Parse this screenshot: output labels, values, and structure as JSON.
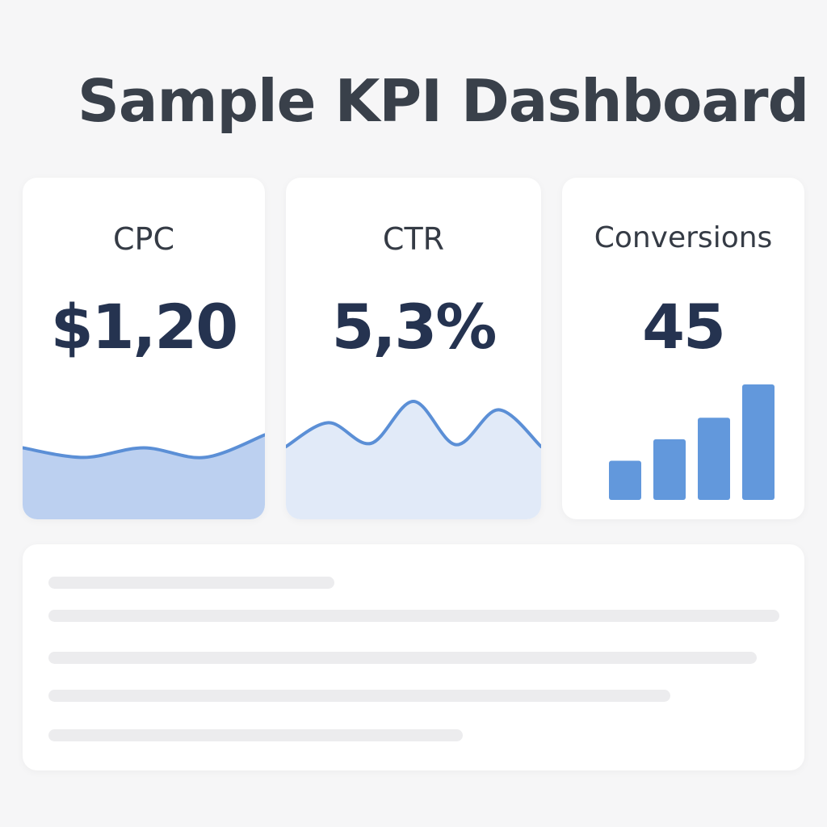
{
  "header": {
    "title": "Sample KPI Dashboard"
  },
  "kpis": [
    {
      "label": "CPC",
      "value": "$1,20",
      "sparkline": {
        "type": "area",
        "values": [
          0.55,
          0.38,
          0.55,
          0.38,
          0.78
        ],
        "line_color": "#5b8fd6",
        "fill_color": "#bcd0f0"
      }
    },
    {
      "label": "CTR",
      "value": "5,3%",
      "sparkline": {
        "type": "area",
        "values": [
          0.25,
          0.62,
          0.3,
          0.95,
          0.28,
          0.82,
          0.25
        ],
        "line_color": "#5b8fd6",
        "fill_color": "#e1eaf8"
      }
    },
    {
      "label": "Conversions",
      "value": "45",
      "bars": {
        "type": "bar",
        "values": [
          1,
          1.55,
          2.1,
          2.95
        ],
        "color": "#6298dc"
      }
    }
  ],
  "colors": {
    "background": "#f6f6f7",
    "card": "#ffffff",
    "title": "#39404a",
    "value": "#253350",
    "skeleton": "#ececee"
  }
}
